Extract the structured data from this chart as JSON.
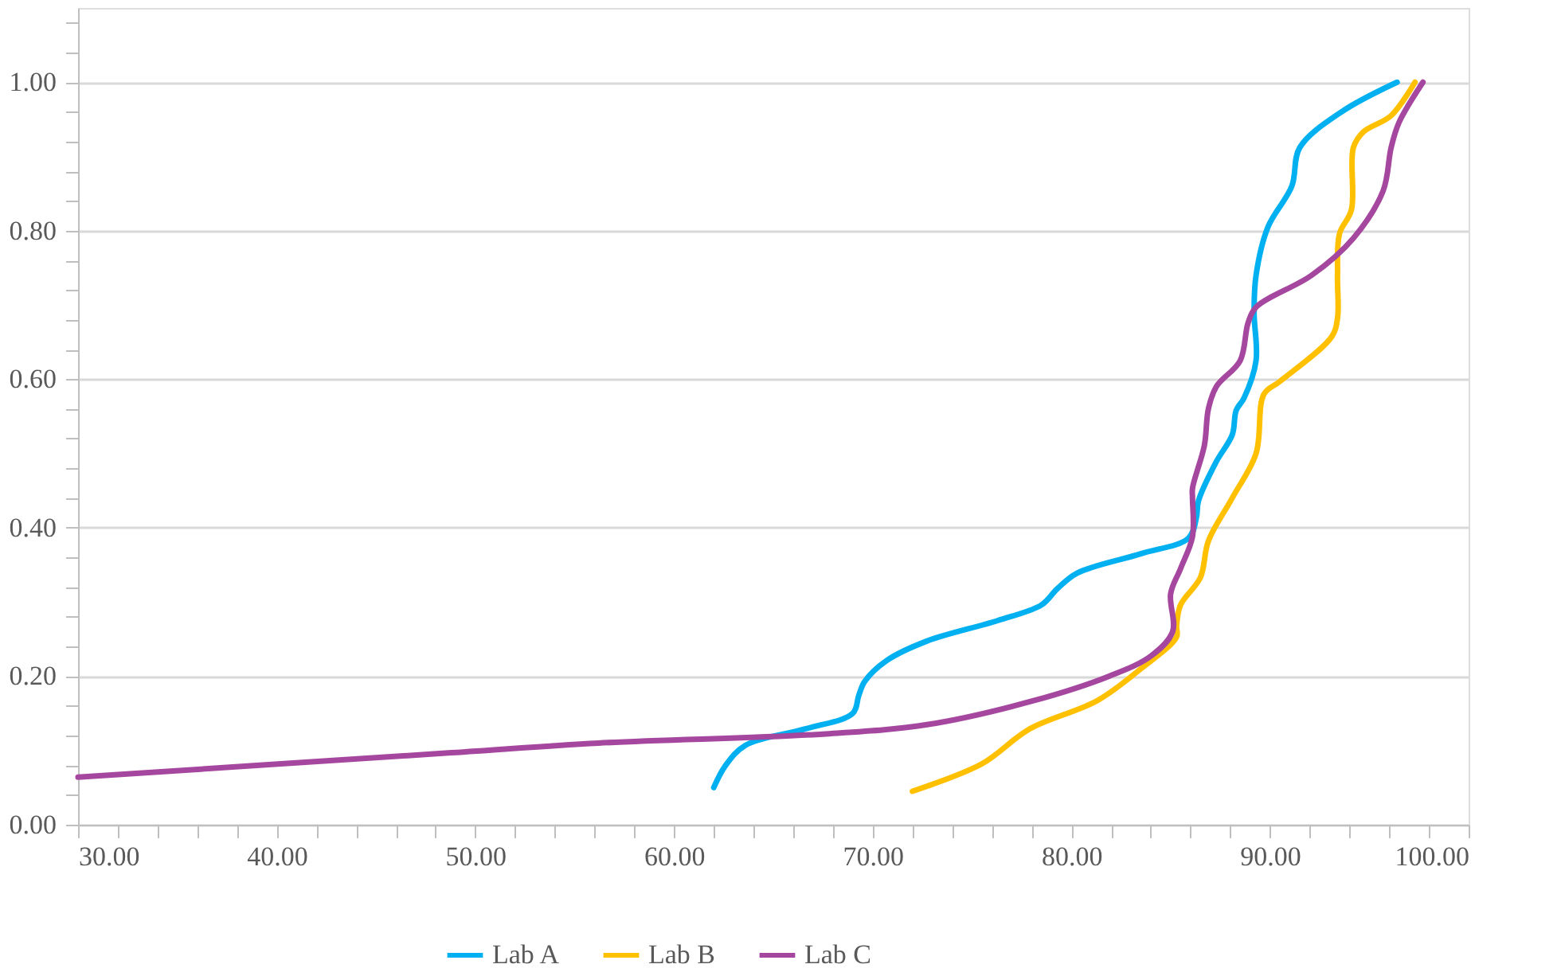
{
  "chart_data": {
    "type": "line",
    "xlim": [
      30,
      100
    ],
    "ylim": [
      0,
      1.1
    ],
    "xticks": [
      {
        "value": 30,
        "label": "30.00"
      },
      {
        "value": 32,
        "label": null
      },
      {
        "value": 34,
        "label": null
      },
      {
        "value": 36,
        "label": null
      },
      {
        "value": 38,
        "label": null
      },
      {
        "value": 40,
        "label": "40.00"
      },
      {
        "value": 42,
        "label": null
      },
      {
        "value": 44,
        "label": null
      },
      {
        "value": 46,
        "label": null
      },
      {
        "value": 48,
        "label": null
      },
      {
        "value": 50,
        "label": "50.00"
      },
      {
        "value": 52,
        "label": null
      },
      {
        "value": 54,
        "label": null
      },
      {
        "value": 56,
        "label": null
      },
      {
        "value": 58,
        "label": null
      },
      {
        "value": 60,
        "label": "60.00"
      },
      {
        "value": 62,
        "label": null
      },
      {
        "value": 64,
        "label": null
      },
      {
        "value": 66,
        "label": null
      },
      {
        "value": 68,
        "label": null
      },
      {
        "value": 70,
        "label": "70.00"
      },
      {
        "value": 72,
        "label": null
      },
      {
        "value": 74,
        "label": null
      },
      {
        "value": 76,
        "label": null
      },
      {
        "value": 78,
        "label": null
      },
      {
        "value": 80,
        "label": "80.00"
      },
      {
        "value": 82,
        "label": null
      },
      {
        "value": 84,
        "label": null
      },
      {
        "value": 86,
        "label": null
      },
      {
        "value": 88,
        "label": null
      },
      {
        "value": 90,
        "label": "90.00"
      },
      {
        "value": 92,
        "label": null
      },
      {
        "value": 94,
        "label": null
      },
      {
        "value": 96,
        "label": null
      },
      {
        "value": 98,
        "label": null
      },
      {
        "value": 100,
        "label": "100.00"
      }
    ],
    "yticks": [
      {
        "value": 0,
        "label": "0.00"
      },
      {
        "value": 0.04,
        "label": null
      },
      {
        "value": 0.08,
        "label": null
      },
      {
        "value": 0.12,
        "label": null
      },
      {
        "value": 0.16,
        "label": null
      },
      {
        "value": 0.2,
        "label": "0.20"
      },
      {
        "value": 0.24,
        "label": null
      },
      {
        "value": 0.28,
        "label": null
      },
      {
        "value": 0.32,
        "label": null
      },
      {
        "value": 0.36,
        "label": null
      },
      {
        "value": 0.4,
        "label": "0.40"
      },
      {
        "value": 0.44,
        "label": null
      },
      {
        "value": 0.48,
        "label": null
      },
      {
        "value": 0.52,
        "label": null
      },
      {
        "value": 0.56,
        "label": null
      },
      {
        "value": 0.6,
        "label": "0.60"
      },
      {
        "value": 0.64,
        "label": null
      },
      {
        "value": 0.68,
        "label": null
      },
      {
        "value": 0.72,
        "label": null
      },
      {
        "value": 0.76,
        "label": null
      },
      {
        "value": 0.8,
        "label": "0.80"
      },
      {
        "value": 0.84,
        "label": null
      },
      {
        "value": 0.88,
        "label": null
      },
      {
        "value": 0.92,
        "label": null
      },
      {
        "value": 0.96,
        "label": null
      },
      {
        "value": 1.0,
        "label": "1.00"
      },
      {
        "value": 1.04,
        "label": null
      },
      {
        "value": 1.08,
        "label": null
      }
    ],
    "grid": "y",
    "legend": "bottom",
    "marker": "none",
    "line_style": "solid",
    "series": [
      {
        "name": "Lab A",
        "color": "#00b0f0",
        "x": [
          62.0,
          62.6,
          63.6,
          66.6,
          69.0,
          69.3,
          69.6,
          70.7,
          72.7,
          76.3,
          78.5,
          79.3,
          80.3,
          83.5,
          85.9,
          86.3,
          86.4,
          87.3,
          88.1,
          88.3,
          88.7,
          89.3,
          89.2,
          89.3,
          89.9,
          91.1,
          91.5,
          93.6,
          96.4
        ],
        "values": [
          0.05,
          0.08,
          0.107,
          0.129,
          0.15,
          0.174,
          0.193,
          0.221,
          0.247,
          0.275,
          0.296,
          0.318,
          0.339,
          0.365,
          0.386,
          0.414,
          0.436,
          0.489,
          0.525,
          0.558,
          0.575,
          0.625,
          0.69,
          0.74,
          0.805,
          0.86,
          0.912,
          0.96,
          1.0
        ]
      },
      {
        "name": "Lab B",
        "color": "#ffc000",
        "x": [
          72.0,
          75.5,
          77.9,
          81.3,
          83.5,
          85.3,
          85.3,
          85.5,
          86.5,
          86.9,
          88.1,
          89.3,
          89.7,
          90.5,
          93.1,
          93.4,
          93.4,
          93.5,
          94.1,
          94.2,
          94.7,
          96.1,
          97.3
        ],
        "values": [
          0.045,
          0.082,
          0.129,
          0.167,
          0.21,
          0.253,
          0.268,
          0.296,
          0.333,
          0.382,
          0.44,
          0.5,
          0.58,
          0.597,
          0.657,
          0.682,
          0.74,
          0.796,
          0.828,
          0.912,
          0.933,
          0.955,
          1.0
        ]
      },
      {
        "name": "Lab C",
        "color": "#a5479f",
        "x": [
          30.0,
          48.8,
          56.2,
          67.5,
          72.8,
          78.1,
          81.9,
          84.0,
          85.1,
          85.0,
          85.5,
          86.1,
          86.1,
          86.1,
          86.7,
          86.9,
          87.3,
          88.5,
          88.9,
          89.3,
          92.1,
          94.2,
          95.7,
          96.1,
          96.5,
          97.7
        ],
        "values": [
          0.064,
          0.097,
          0.11,
          0.122,
          0.135,
          0.167,
          0.2,
          0.227,
          0.26,
          0.311,
          0.345,
          0.388,
          0.44,
          0.453,
          0.511,
          0.56,
          0.59,
          0.625,
          0.676,
          0.697,
          0.74,
          0.79,
          0.854,
          0.912,
          0.946,
          1.0
        ]
      }
    ]
  }
}
